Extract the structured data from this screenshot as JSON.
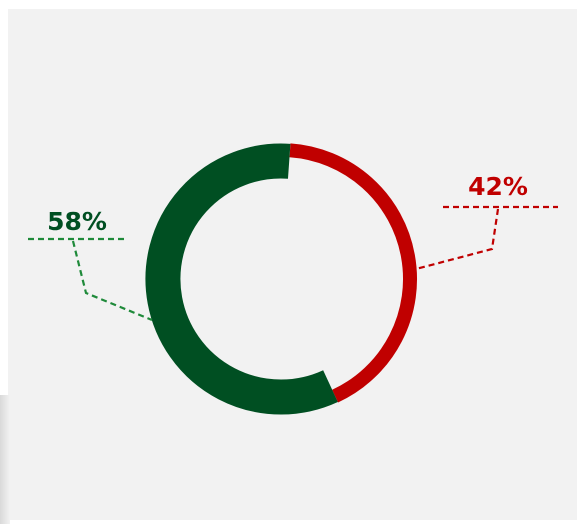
{
  "chart_data": {
    "type": "pie",
    "style": "donut",
    "slices": [
      {
        "value": 58,
        "label": "58%",
        "color": "#004f22"
      },
      {
        "value": 42,
        "label": "42%",
        "color": "#c00000"
      }
    ]
  }
}
